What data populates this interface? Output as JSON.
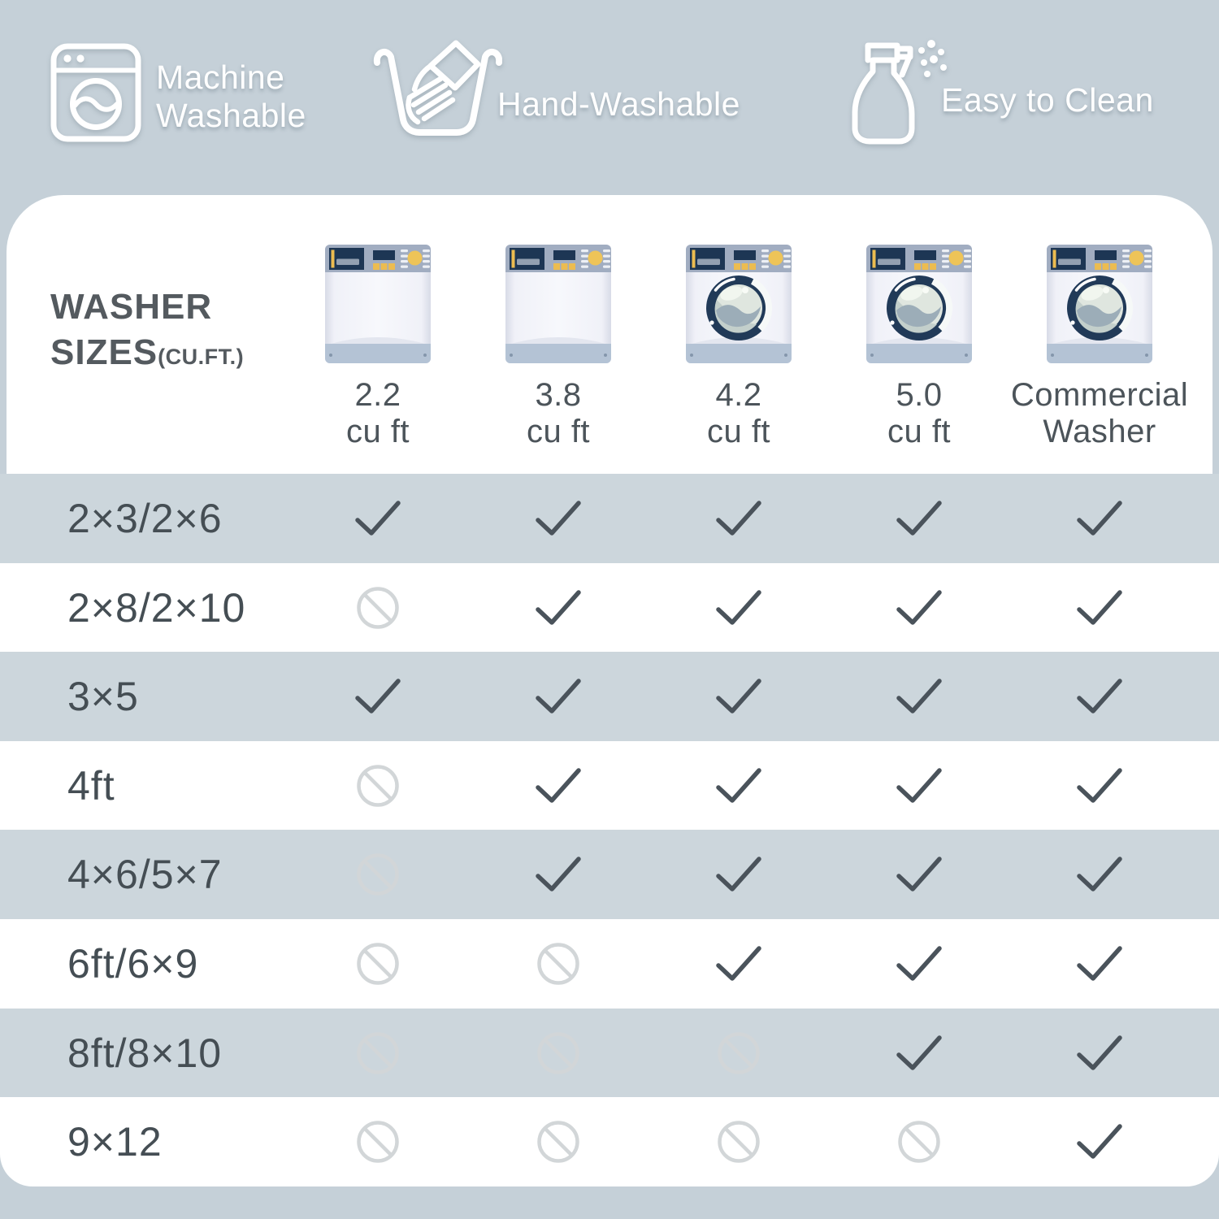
{
  "colors": {
    "page_bg": "#c5d0d8",
    "row_band": "#ccd6dc",
    "card": "#ffffff",
    "header_text": "#ffffff",
    "corner_text": "#545a5f",
    "column_label": "#4c545a",
    "row_label": "#454e54",
    "check": "#4a535b",
    "prohibit": "#d2d6d8",
    "washer_panel": "#a1adc1",
    "washer_navy": "#1d3654",
    "washer_yellow": "#ecbc50",
    "washer_base_strip": "#b4c3d5",
    "washer_body": "#f1f2f9",
    "washer_door_ring": "#213a58"
  },
  "header": {
    "features": [
      {
        "icon": "washing-machine-icon",
        "label": "Machine\nWashable"
      },
      {
        "icon": "hand-wash-icon",
        "label": "Hand-Washable"
      },
      {
        "icon": "spray-bottle-icon",
        "label": "Easy to Clean"
      }
    ]
  },
  "table": {
    "corner": {
      "title": "WASHER\nSIZES",
      "subtitle": "(CU.FT.)"
    },
    "columns": [
      {
        "washer_type": "top-load",
        "label": "2.2\ncu ft"
      },
      {
        "washer_type": "top-load",
        "label": "3.8\ncu ft"
      },
      {
        "washer_type": "front-load",
        "label": "4.2\ncu ft"
      },
      {
        "washer_type": "front-load",
        "label": "5.0\ncu ft"
      },
      {
        "washer_type": "front-load",
        "label": "Commercial\nWasher"
      }
    ],
    "rows": [
      {
        "label": "2×3/2×6",
        "cells": [
          "check",
          "check",
          "check",
          "check",
          "check"
        ]
      },
      {
        "label": "2×8/2×10",
        "cells": [
          "no",
          "check",
          "check",
          "check",
          "check"
        ]
      },
      {
        "label": "3×5",
        "cells": [
          "check",
          "check",
          "check",
          "check",
          "check"
        ]
      },
      {
        "label": "4ft",
        "cells": [
          "no",
          "check",
          "check",
          "check",
          "check"
        ]
      },
      {
        "label": "4×6/5×7",
        "cells": [
          "no",
          "check",
          "check",
          "check",
          "check"
        ]
      },
      {
        "label": "6ft/6×9",
        "cells": [
          "no",
          "no",
          "check",
          "check",
          "check"
        ]
      },
      {
        "label": "8ft/8×10",
        "cells": [
          "no",
          "no",
          "no",
          "check",
          "check"
        ]
      },
      {
        "label": "9×12",
        "cells": [
          "no",
          "no",
          "no",
          "no",
          "check"
        ]
      }
    ]
  }
}
